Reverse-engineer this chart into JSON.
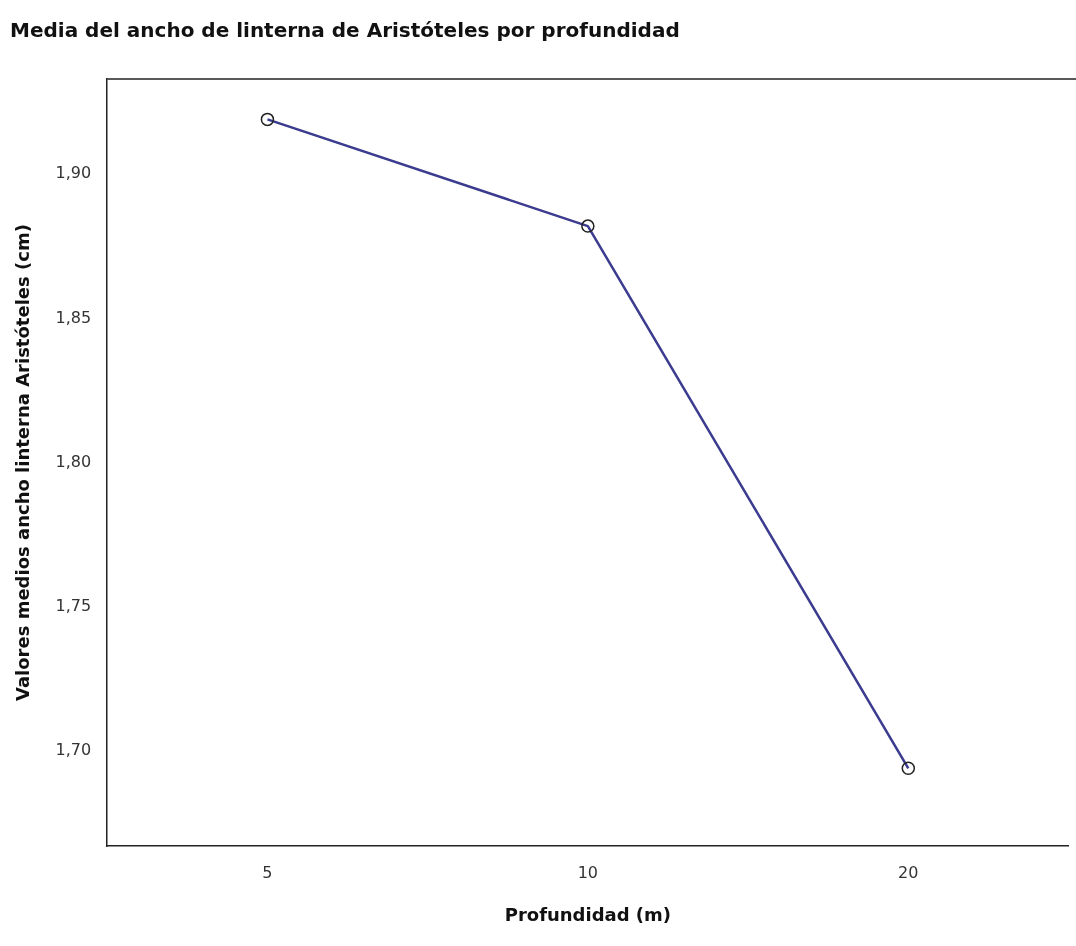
{
  "chart_data": {
    "type": "line",
    "title": "Media del ancho de linterna de Aristóteles por profundidad",
    "xlabel": "Profundidad (m)",
    "ylabel": "Valores medios ancho linterna Aristóteles (cm)",
    "categories": [
      "5",
      "10",
      "20"
    ],
    "series": [
      {
        "color": "#3b3b8f",
        "values": [
          1.919,
          1.882,
          1.694
        ]
      }
    ],
    "ylim": [
      1.667,
      1.933
    ],
    "yticks": [
      {
        "value": 1.7,
        "label": "1,70"
      },
      {
        "value": 1.75,
        "label": "1,75"
      },
      {
        "value": 1.8,
        "label": "1,80"
      },
      {
        "value": 1.85,
        "label": "1,85"
      },
      {
        "value": 1.9,
        "label": "1,90"
      }
    ],
    "grid": false,
    "legend": false,
    "marker": "circle",
    "line_style": "solid"
  }
}
